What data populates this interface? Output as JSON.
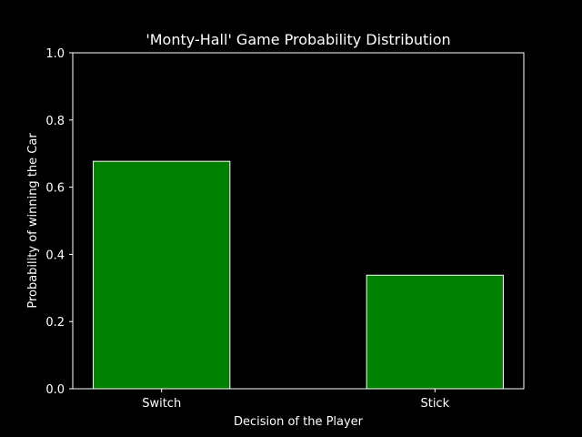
{
  "chart_data": {
    "type": "bar",
    "title": "'Monty-Hall' Game Probability Distribution",
    "xlabel": "Decision of the Player",
    "ylabel": "Probability of winning the Car",
    "categories": [
      "Switch",
      "Stick"
    ],
    "values": [
      0.677,
      0.338
    ],
    "ylim": [
      0,
      1.0
    ],
    "yticks": [
      "0.0",
      "0.2",
      "0.4",
      "0.6",
      "0.8",
      "1.0"
    ],
    "grid": false,
    "colors": {
      "background": "#000000",
      "bar_fill": "#008000",
      "bar_edge": "#ffffff",
      "axes": "#ffffff",
      "text": "#ffffff"
    }
  }
}
